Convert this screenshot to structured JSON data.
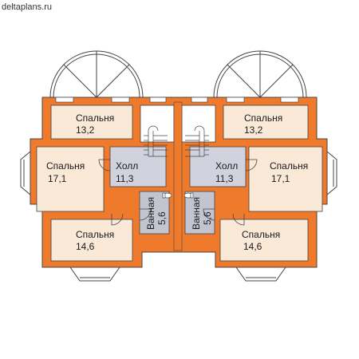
{
  "site": "deltaplans.ru",
  "colors": {
    "wall": "#f07a2c",
    "room": "#fbe9d8",
    "hall": "#d2d2de",
    "bath": "#c4c4d0",
    "line": "#444444",
    "text": "#1a1a1a"
  },
  "rooms": {
    "bedroom_top_left": {
      "name": "Спальня",
      "area": "13,2"
    },
    "bedroom_mid_left": {
      "name": "Спальня",
      "area": "17,1"
    },
    "bedroom_bot_left": {
      "name": "Спальня",
      "area": "14,6"
    },
    "hall_left": {
      "name": "Холл",
      "area": "11,3"
    },
    "bath_left": {
      "name": "Ванная",
      "area": "5,6"
    },
    "bath_right": {
      "name": "Ванная",
      "area": "5,6"
    },
    "hall_right": {
      "name": "Холл",
      "area": "11,3"
    },
    "bedroom_top_right": {
      "name": "Спальня",
      "area": "13,2"
    },
    "bedroom_mid_right": {
      "name": "Спальня",
      "area": "17,1"
    },
    "bedroom_bot_right": {
      "name": "Спальня",
      "area": "14,6"
    }
  }
}
